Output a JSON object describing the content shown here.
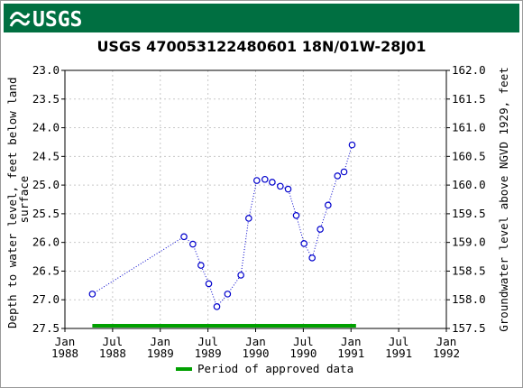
{
  "header": {
    "logo_text": "USGS"
  },
  "chart_data": {
    "type": "scatter",
    "title": "USGS 470053122480601 18N/01W-28J01",
    "ylabel_left": "Depth to water level, feet below land surface",
    "ylabel_right": "Groundwater level above NGVD 1929, feet",
    "ylim_left": [
      23.0,
      27.5
    ],
    "ylim_right": [
      162.0,
      157.5
    ],
    "left_ticks": [
      "23.0",
      "23.5",
      "24.0",
      "24.5",
      "25.0",
      "25.5",
      "26.0",
      "26.5",
      "27.0",
      "27.5"
    ],
    "right_ticks": [
      "162.0",
      "161.5",
      "161.0",
      "160.5",
      "160.0",
      "159.5",
      "159.0",
      "158.5",
      "158.0",
      "157.5"
    ],
    "x_ticks": [
      {
        "top": "Jan",
        "bottom": "1988"
      },
      {
        "top": "Jul",
        "bottom": "1988"
      },
      {
        "top": "Jan",
        "bottom": "1989"
      },
      {
        "top": "Jul",
        "bottom": "1989"
      },
      {
        "top": "Jan",
        "bottom": "1990"
      },
      {
        "top": "Jul",
        "bottom": "1990"
      },
      {
        "top": "Jan",
        "bottom": "1991"
      },
      {
        "top": "Jul",
        "bottom": "1991"
      },
      {
        "top": "Jan",
        "bottom": "1992"
      }
    ],
    "xlim": [
      "1988-01-01",
      "1992-01-01"
    ],
    "grid": true,
    "series": [
      {
        "line_style": "dotted",
        "marker": "open-circle",
        "color": "#0000cc",
        "points": [
          {
            "x": "1988-04-15",
            "y": 26.9
          },
          {
            "x": "1989-04-01",
            "y": 25.9
          },
          {
            "x": "1989-05-05",
            "y": 26.03
          },
          {
            "x": "1989-06-05",
            "y": 26.4
          },
          {
            "x": "1989-07-05",
            "y": 26.72
          },
          {
            "x": "1989-08-05",
            "y": 27.12
          },
          {
            "x": "1989-09-15",
            "y": 26.9
          },
          {
            "x": "1989-11-05",
            "y": 26.57
          },
          {
            "x": "1989-12-05",
            "y": 25.58
          },
          {
            "x": "1990-01-05",
            "y": 24.92
          },
          {
            "x": "1990-02-05",
            "y": 24.9
          },
          {
            "x": "1990-03-05",
            "y": 24.95
          },
          {
            "x": "1990-04-05",
            "y": 25.02
          },
          {
            "x": "1990-05-05",
            "y": 25.07
          },
          {
            "x": "1990-06-05",
            "y": 25.53
          },
          {
            "x": "1990-07-05",
            "y": 26.02
          },
          {
            "x": "1990-08-05",
            "y": 26.27
          },
          {
            "x": "1990-09-05",
            "y": 25.77
          },
          {
            "x": "1990-10-05",
            "y": 25.35
          },
          {
            "x": "1990-11-10",
            "y": 24.84
          },
          {
            "x": "1990-12-05",
            "y": 24.77
          },
          {
            "x": "1991-01-05",
            "y": 24.3
          }
        ]
      }
    ],
    "approved_period": {
      "start": "1988-04-15",
      "end": "1991-01-20",
      "color": "#00a000"
    },
    "legend": {
      "label": "Period of approved data",
      "placement": "bottom-center"
    }
  }
}
